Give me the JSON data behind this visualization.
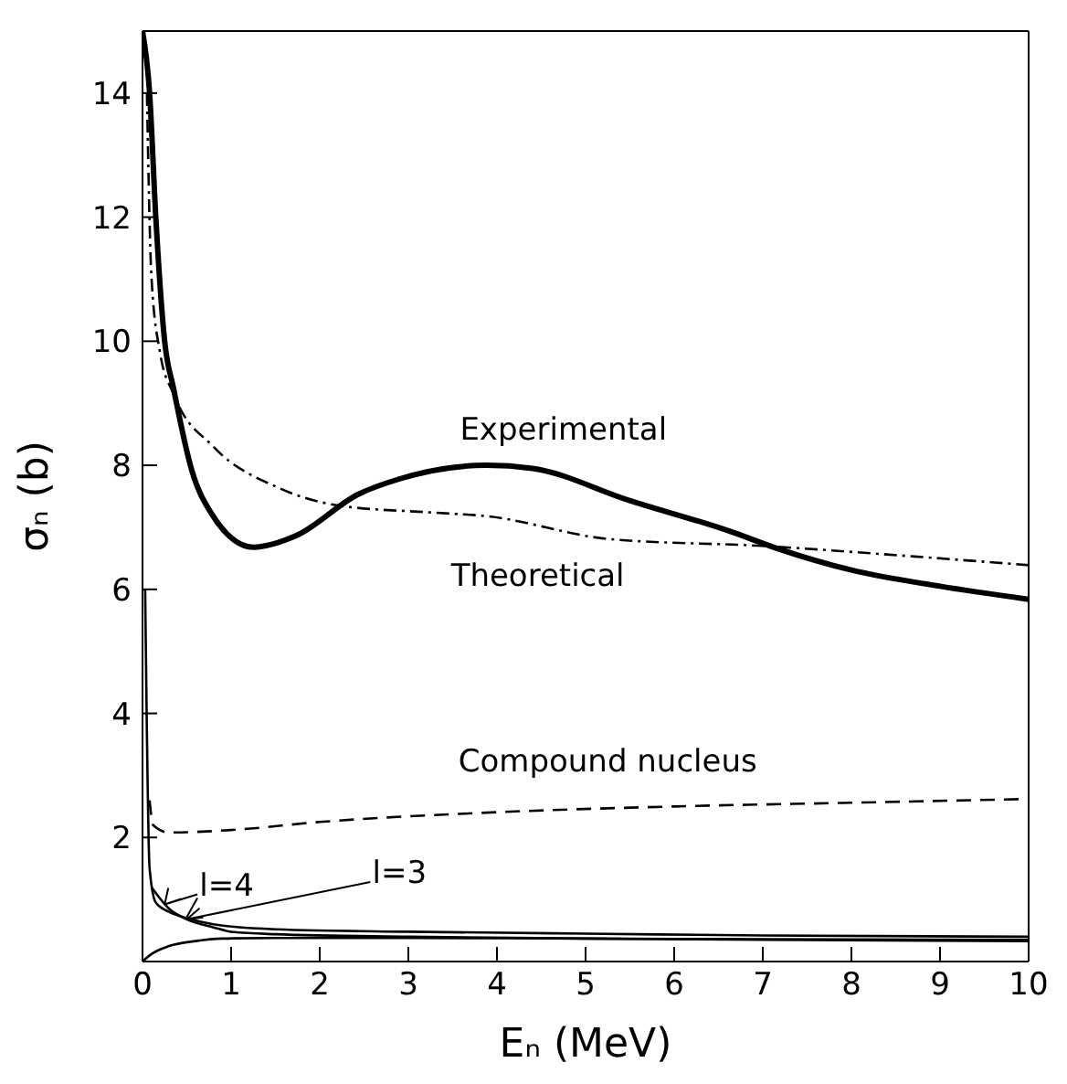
{
  "chart_data": {
    "type": "line",
    "xlabel": "Eₙ (MeV)",
    "ylabel": "σₙ (b)",
    "xlim": [
      0,
      10
    ],
    "ylim": [
      0,
      15
    ],
    "xticks": [
      0,
      1,
      2,
      3,
      4,
      5,
      6,
      7,
      8,
      9,
      10
    ],
    "yticks": [
      {
        "value": 0,
        "label": null
      },
      2,
      4,
      6,
      8,
      10,
      12,
      14
    ],
    "marker": "none",
    "series": [
      {
        "name": "Experimental",
        "color": "#000000",
        "line_style": "solid",
        "x": [
          0,
          0.08,
          0.15,
          0.25,
          0.35,
          0.56,
          0.77,
          1.25,
          1.74,
          2.43,
          2.9,
          3.88,
          4.4,
          5.48,
          6.64,
          7.14,
          8.03,
          9,
          10
        ],
        "values": [
          15,
          14,
          12,
          10,
          9.24,
          7.9,
          7.24,
          6.68,
          6.87,
          7.53,
          7.78,
          8,
          7.95,
          7.44,
          6.93,
          6.67,
          6.3,
          6.05,
          5.84
        ]
      },
      {
        "name": "Theoretical",
        "color": "#000000",
        "line_style": "dashdot",
        "x": [
          0.05,
          0.1,
          0.2,
          0.35,
          0.8,
          1.53,
          2.22,
          3.25,
          3.88,
          5.27,
          6.99,
          8.71,
          10
        ],
        "values": [
          14,
          11.06,
          9.8,
          9.15,
          8.3,
          7.64,
          7.35,
          7.24,
          7.18,
          6.81,
          6.7,
          6.53,
          6.39
        ]
      },
      {
        "name": "Compound nucleus",
        "color": "#000000",
        "line_style": "dashed",
        "x": [
          0.08,
          0.12,
          0.3,
          1,
          2,
          3.88,
          6,
          8,
          10
        ],
        "values": [
          2.6,
          2.2,
          2.08,
          2.12,
          2.25,
          2.4,
          2.5,
          2.56,
          2.62
        ]
      },
      {
        "name": "l=4",
        "color": "#000000",
        "line_style": "solid",
        "x": [
          0.03,
          0.08,
          0.15,
          0.3,
          0.5,
          0.8,
          1.5,
          3,
          5,
          7,
          10
        ],
        "values": [
          6,
          1.5,
          0.95,
          0.8,
          0.7,
          0.6,
          0.52,
          0.48,
          0.45,
          0.42,
          0.4
        ]
      },
      {
        "name": "l=3",
        "color": "#000000",
        "line_style": "solid",
        "x": [
          0.1,
          0.3,
          0.5,
          0.8,
          1,
          1.5,
          3,
          5,
          7,
          10
        ],
        "values": [
          1.2,
          0.85,
          0.68,
          0.55,
          0.48,
          0.44,
          0.4,
          0.37,
          0.35,
          0.33
        ]
      },
      {
        "color": "#000000",
        "line_style": "solid",
        "x": [
          0,
          0.1,
          0.3,
          0.6,
          0.9,
          1.5,
          3,
          5,
          7,
          10
        ],
        "values": [
          0,
          0.12,
          0.25,
          0.33,
          0.37,
          0.38,
          0.38,
          0.37,
          0.36,
          0.35
        ]
      }
    ]
  }
}
